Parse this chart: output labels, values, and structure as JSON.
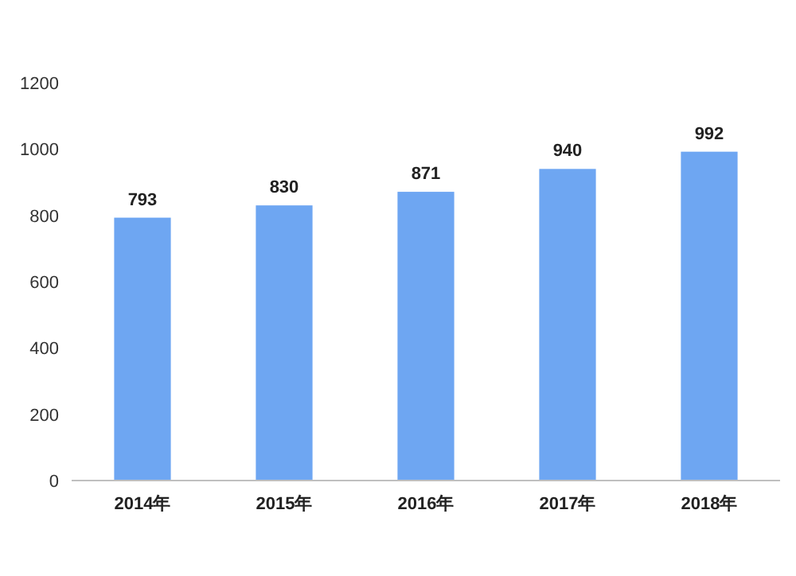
{
  "chart_data": {
    "type": "bar",
    "categories": [
      "2014年",
      "2015年",
      "2016年",
      "2017年",
      "2018年"
    ],
    "values": [
      793,
      830,
      871,
      940,
      992
    ],
    "color": "#6ea6f2",
    "ylim": [
      0,
      1200
    ],
    "yticks": [
      0,
      200,
      400,
      600,
      800,
      1000,
      1200
    ],
    "data_labels": true,
    "grid": false
  }
}
